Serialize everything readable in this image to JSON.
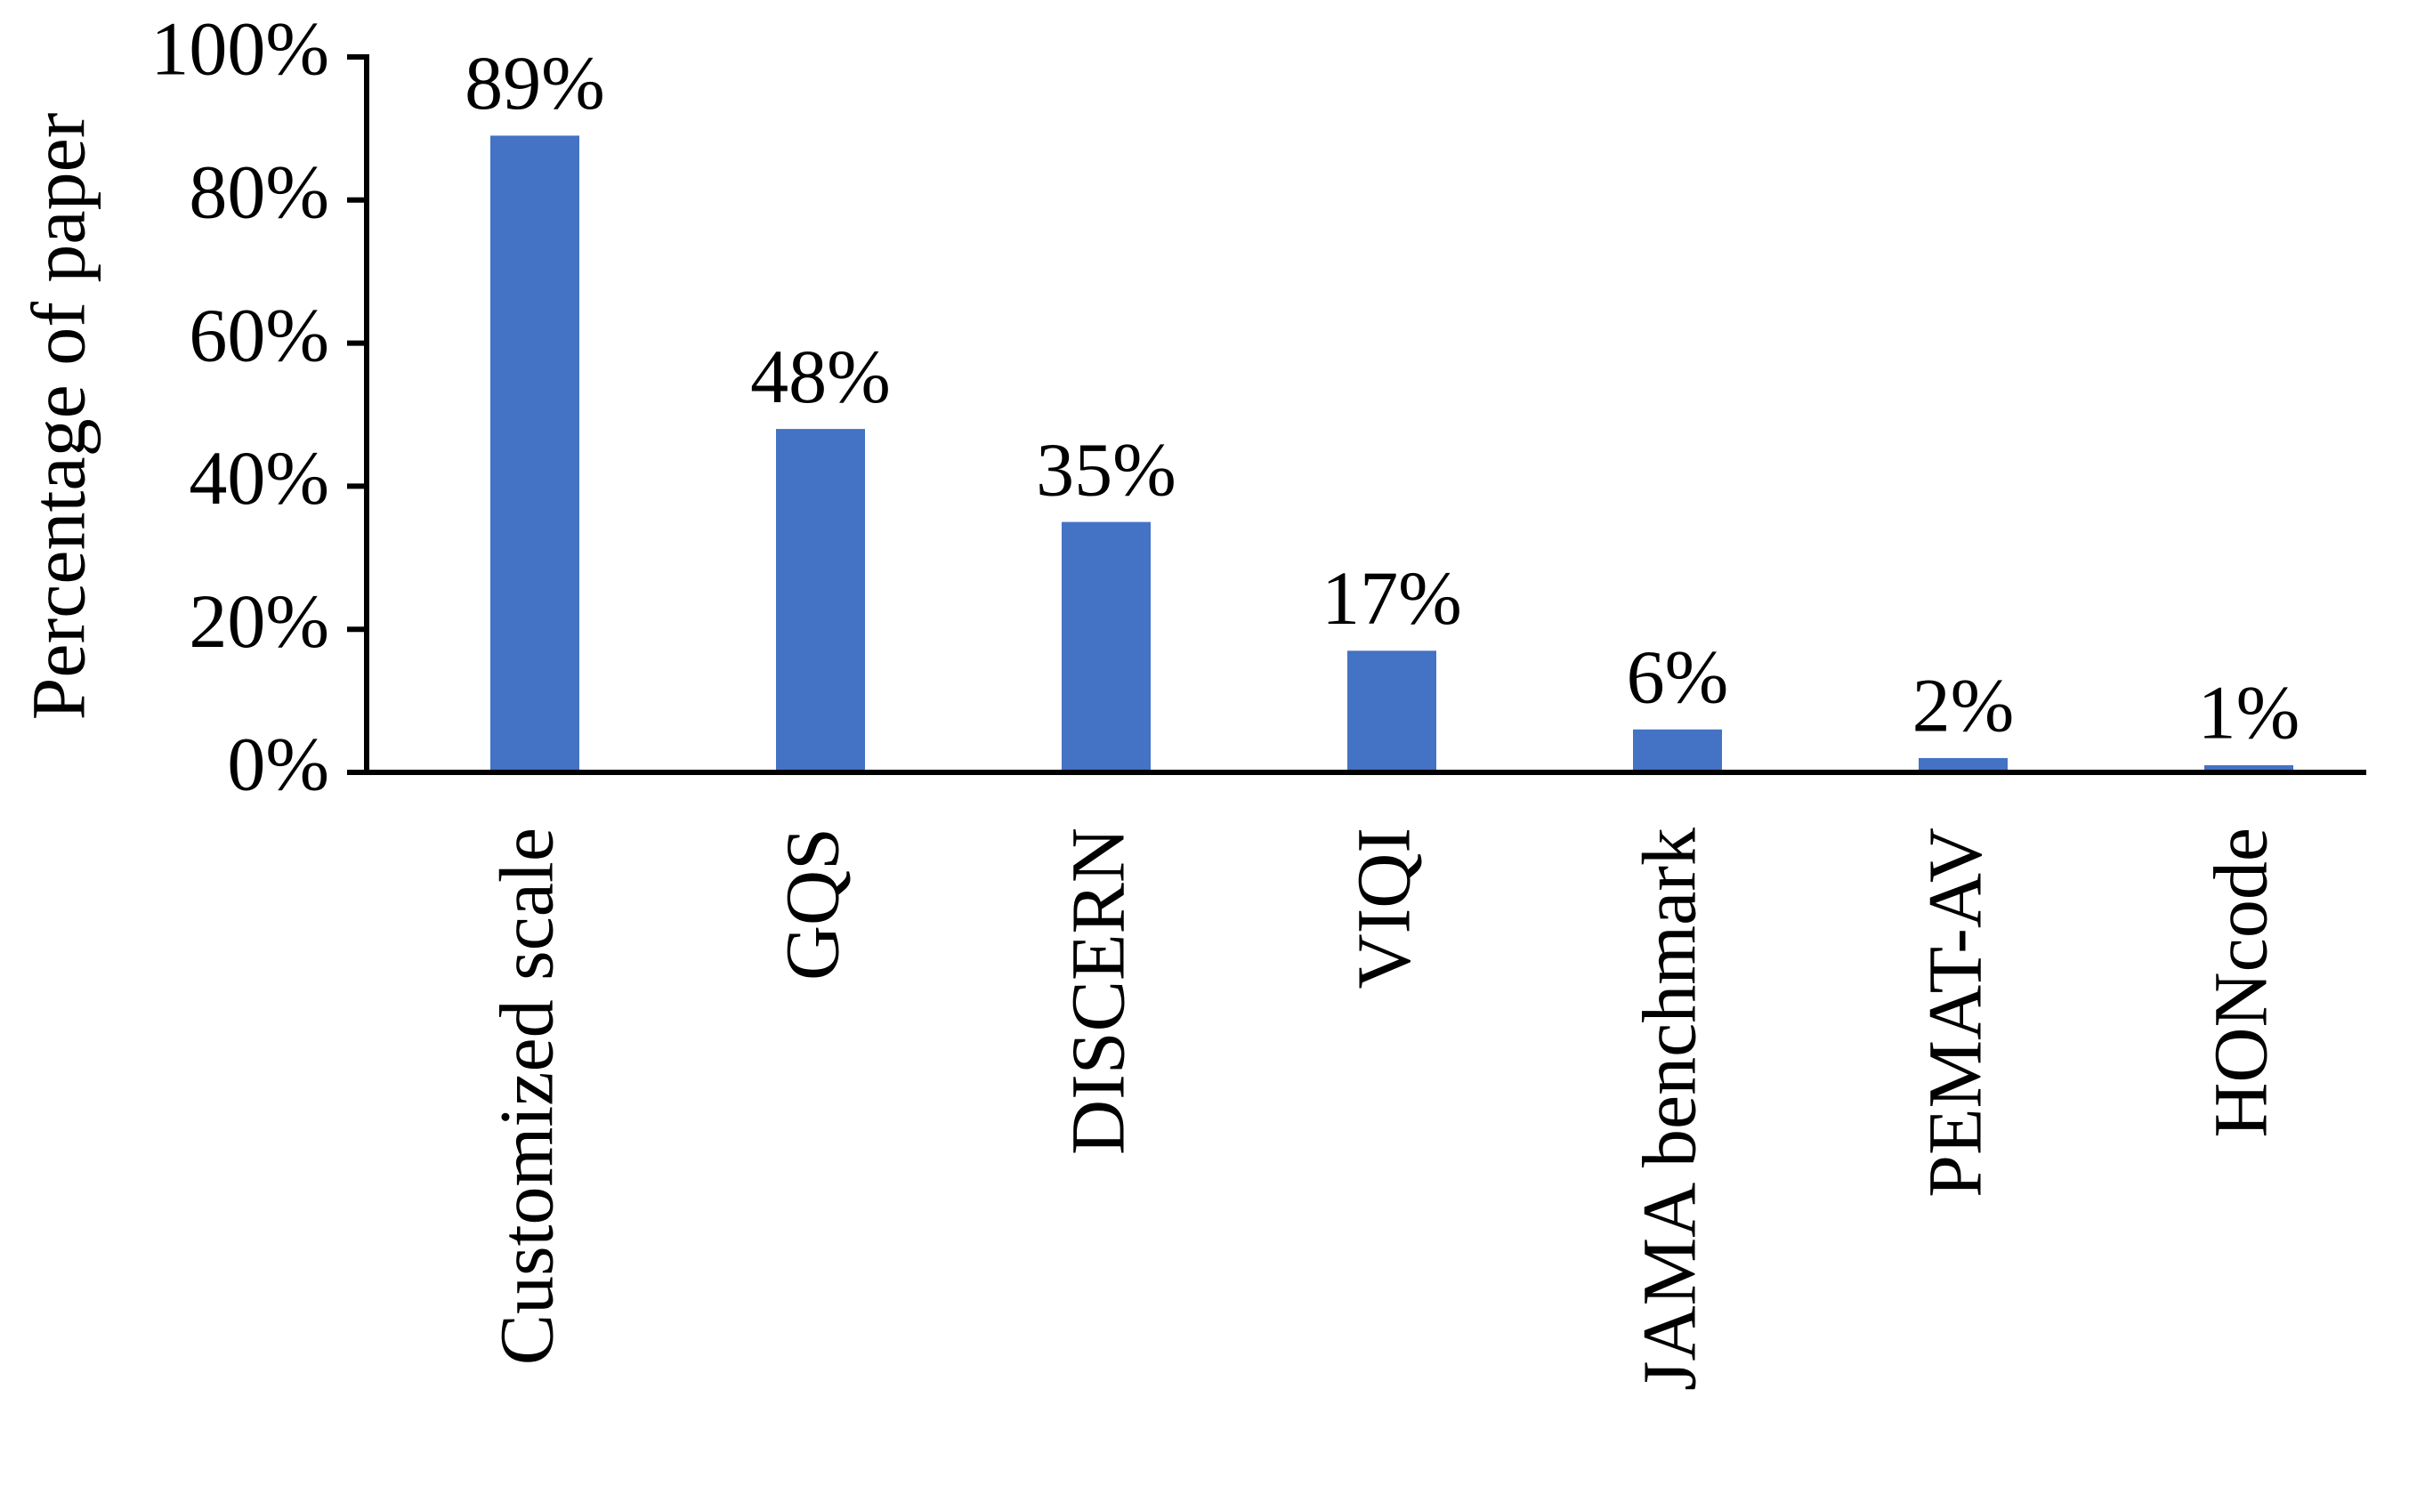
{
  "chart_data": {
    "type": "bar",
    "y_label": "Percentage of paper",
    "categories": [
      "Customized scale",
      "GQS",
      "DISCERN",
      "VIQI",
      "JAMA benchmark",
      "PEMAT-AV",
      "HONcode"
    ],
    "values": [
      89,
      48,
      35,
      17,
      6,
      2,
      1
    ],
    "value_labels": [
      "89%",
      "48%",
      "35%",
      "17%",
      "6%",
      "2%",
      "1%"
    ],
    "color": "#4472c4",
    "ylim": [
      0,
      100
    ],
    "yticks": [
      {
        "value": 0,
        "label": "0%"
      },
      {
        "value": 20,
        "label": "20%"
      },
      {
        "value": 40,
        "label": "40%"
      },
      {
        "value": 60,
        "label": "60%"
      },
      {
        "value": 80,
        "label": "80%"
      },
      {
        "value": 100,
        "label": "100%"
      }
    ],
    "grid": false
  }
}
